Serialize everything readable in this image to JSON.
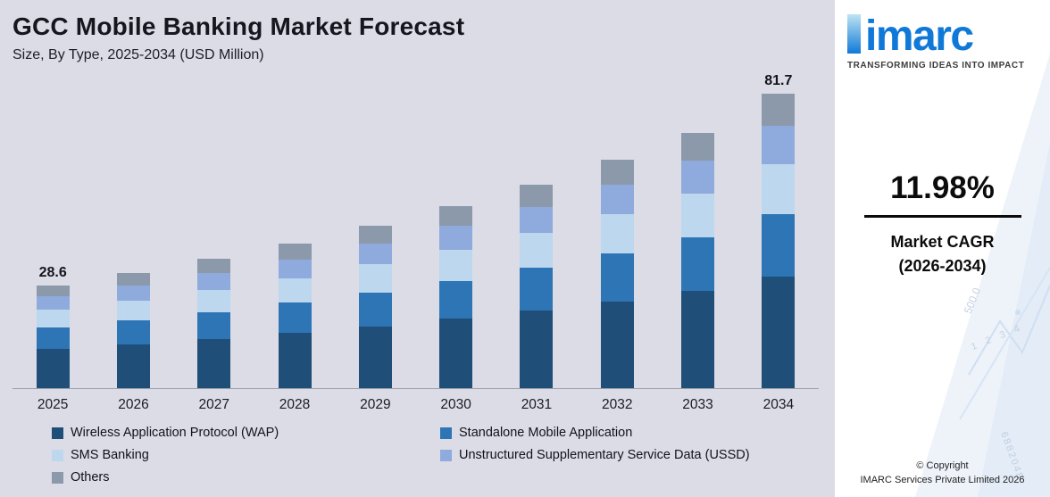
{
  "header": {
    "title": "GCC Mobile Banking Market Forecast",
    "subtitle": "Size, By Type, 2025-2034 (USD Million)"
  },
  "chart_data": {
    "type": "bar",
    "stacked": true,
    "title": "GCC Mobile Banking Market Forecast",
    "subtitle": "Size, By Type, 2025-2034 (USD Million)",
    "unit": "USD Million",
    "categories": [
      "2025",
      "2026",
      "2027",
      "2028",
      "2029",
      "2030",
      "2031",
      "2032",
      "2033",
      "2034"
    ],
    "series": [
      {
        "name": "Wireless Application Protocol (WAP)",
        "color": "#1f4e79",
        "values": [
          10.9,
          12.2,
          13.6,
          15.3,
          17.1,
          19.2,
          21.5,
          24.1,
          26.9,
          31.0
        ]
      },
      {
        "name": "Standalone Mobile Application",
        "color": "#2e75b6",
        "values": [
          6.0,
          6.7,
          7.5,
          8.4,
          9.5,
          10.6,
          11.9,
          13.3,
          14.9,
          17.2
        ]
      },
      {
        "name": "SMS Banking",
        "color": "#bdd7ee",
        "values": [
          4.9,
          5.4,
          6.1,
          6.8,
          7.7,
          8.6,
          9.6,
          10.8,
          12.1,
          13.9
        ]
      },
      {
        "name": "Unstructured Supplementary Service Data (USSD)",
        "color": "#8faadc",
        "values": [
          3.7,
          4.2,
          4.7,
          5.2,
          5.9,
          6.6,
          7.3,
          8.2,
          9.2,
          10.6
        ]
      },
      {
        "name": "Others",
        "color": "#8b99ab",
        "values": [
          3.1,
          3.5,
          3.9,
          4.4,
          4.9,
          5.5,
          6.1,
          6.9,
          7.7,
          9.0
        ]
      }
    ],
    "totals_labeled": {
      "2025": 28.6,
      "2034": 81.7
    },
    "value_labels": [
      {
        "index": 0,
        "label": "28.6"
      },
      {
        "index": 9,
        "label": "81.7"
      }
    ],
    "ylim": [
      0,
      85
    ],
    "grid": false,
    "legend_position": "bottom"
  },
  "sidebar": {
    "brand": "imarc",
    "tagline": "TRANSFORMING IDEAS INTO IMPACT",
    "cagr_value": "11.98%",
    "cagr_label_line1": "Market CAGR",
    "cagr_label_line2": "(2026-2034)",
    "copyright_line1": "© Copyright",
    "copyright_line2": "IMARC Services Private Limited 2026",
    "watermark": {
      "value": "500.0",
      "numbers": "1 2 3 4",
      "serial": "6882048"
    }
  },
  "colors": {
    "background": "#dbdce6",
    "axis": "#9aa0ac",
    "brand_blue": "#1079d8"
  }
}
